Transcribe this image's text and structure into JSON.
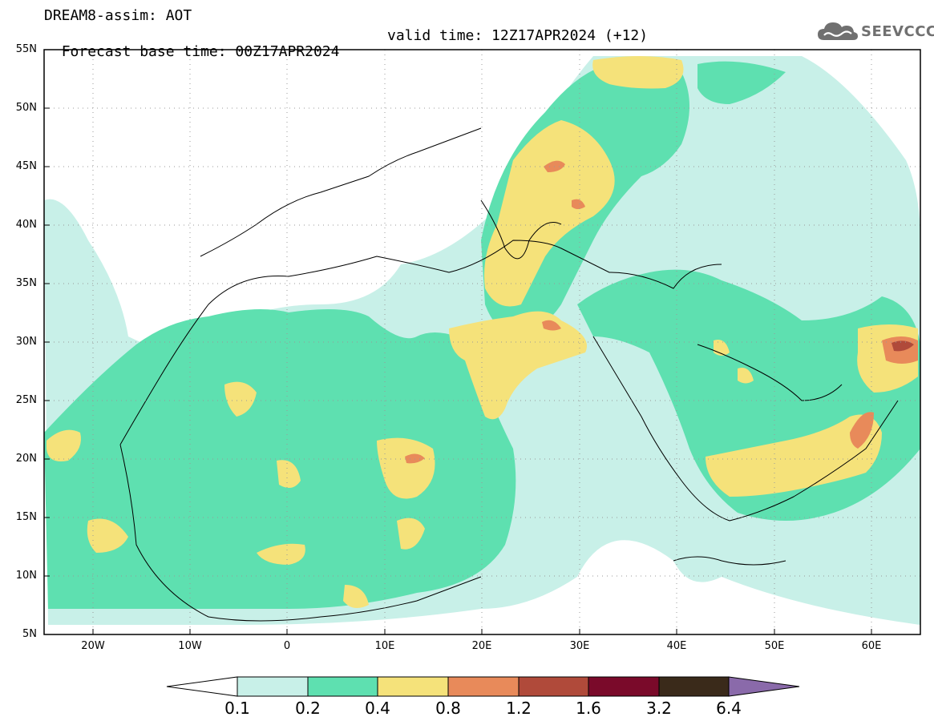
{
  "header": {
    "line1": "DREAM8-assim: AOT",
    "line2_left": "Forecast base time: 00Z17APR2024",
    "line2_right": "valid time: 12Z17APR2024 (+12)"
  },
  "logo": {
    "text": "SEEVCCC",
    "icon": "cloud-icon"
  },
  "map": {
    "variable": "AOT",
    "lat_ticks": [
      "55N",
      "50N",
      "45N",
      "40N",
      "35N",
      "30N",
      "25N",
      "20N",
      "15N",
      "10N",
      "5N"
    ],
    "lon_ticks": [
      "20W",
      "10W",
      "0",
      "10E",
      "20E",
      "30E",
      "40E",
      "50E",
      "60E"
    ]
  },
  "colorbar": {
    "levels": [
      "0.1",
      "0.2",
      "0.4",
      "0.8",
      "1.2",
      "1.6",
      "3.2",
      "6.4"
    ],
    "colors": [
      "#ffffff",
      "#c8f0e8",
      "#5ee0b0",
      "#f5e27a",
      "#e88a5a",
      "#b04a3a",
      "#7a0a2a",
      "#3a2a1a",
      "#8a6aaa"
    ]
  },
  "colors": {
    "c01": "#c8f0e8",
    "c02": "#5ee0b0",
    "c04": "#f5e27a",
    "c08": "#e88a5a",
    "c12": "#b04a3a",
    "frame": "#000000",
    "grid": "#999999"
  }
}
